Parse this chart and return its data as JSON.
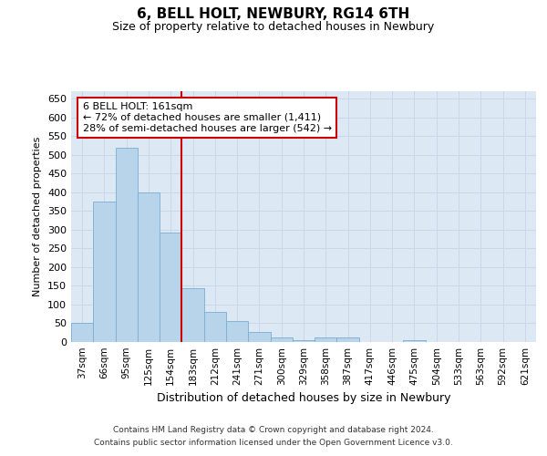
{
  "title1": "6, BELL HOLT, NEWBURY, RG14 6TH",
  "title2": "Size of property relative to detached houses in Newbury",
  "xlabel": "Distribution of detached houses by size in Newbury",
  "ylabel": "Number of detached properties",
  "categories": [
    "37sqm",
    "66sqm",
    "95sqm",
    "125sqm",
    "154sqm",
    "183sqm",
    "212sqm",
    "241sqm",
    "271sqm",
    "300sqm",
    "329sqm",
    "358sqm",
    "387sqm",
    "417sqm",
    "446sqm",
    "475sqm",
    "504sqm",
    "533sqm",
    "563sqm",
    "592sqm",
    "621sqm"
  ],
  "values": [
    50,
    375,
    520,
    400,
    293,
    143,
    80,
    55,
    28,
    11,
    5,
    11,
    11,
    1,
    0,
    4,
    1,
    0,
    1,
    0,
    1
  ],
  "bar_color": "#b8d4ea",
  "bar_edge_color": "#7aadd4",
  "vline_color": "#cc0000",
  "vline_pos": 4.5,
  "annotation_line1": "6 BELL HOLT: 161sqm",
  "annotation_line2": "← 72% of detached houses are smaller (1,411)",
  "annotation_line3": "28% of semi-detached houses are larger (542) →",
  "ylim_max": 670,
  "yticks": [
    0,
    50,
    100,
    150,
    200,
    250,
    300,
    350,
    400,
    450,
    500,
    550,
    600,
    650
  ],
  "grid_color": "#c8d8e8",
  "bg_color": "#dce9f5",
  "footer1": "Contains HM Land Registry data © Crown copyright and database right 2024.",
  "footer2": "Contains public sector information licensed under the Open Government Licence v3.0."
}
